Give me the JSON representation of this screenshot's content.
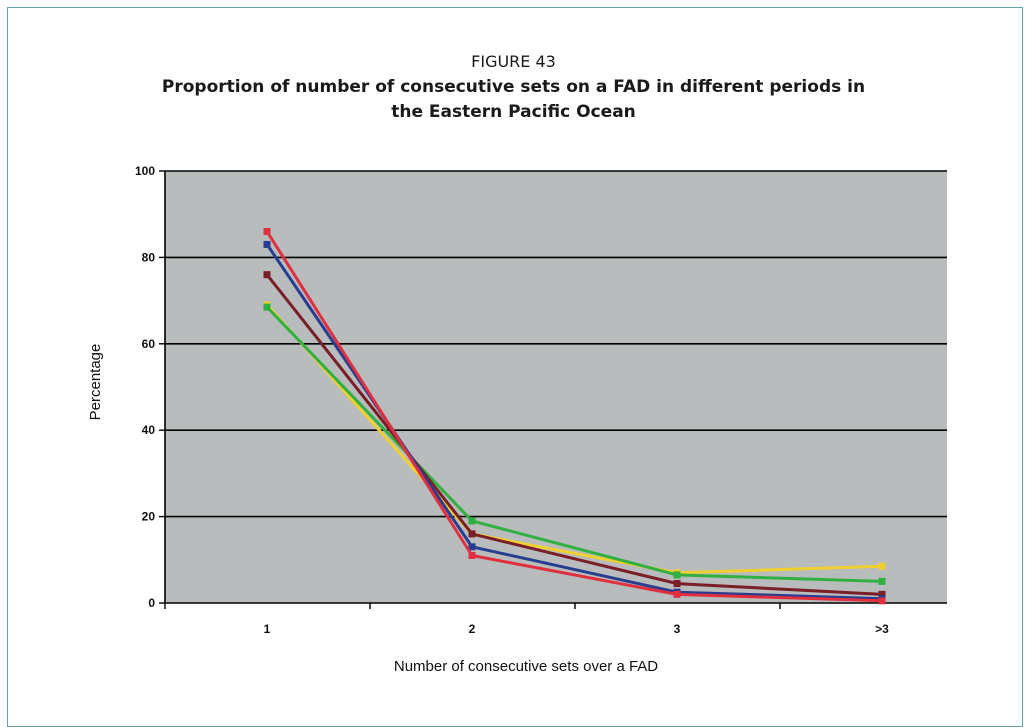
{
  "figure": {
    "label": "FIGURE 43",
    "title_line1": "Proportion of number of consecutive sets on a FAD in different periods in",
    "title_line2": "the Eastern Pacific Ocean"
  },
  "chart_data": {
    "type": "line",
    "title": "Proportion of number of consecutive sets on a FAD in different periods in the Eastern Pacific Ocean",
    "xlabel": "Number of consecutive sets over a FAD",
    "ylabel": "Percentage",
    "categories": [
      "1",
      "2",
      "3",
      ">3"
    ],
    "ylim": [
      0,
      100
    ],
    "yticks": [
      0,
      20,
      40,
      60,
      80,
      100
    ],
    "grid": true,
    "legend": "none",
    "plot_background": "#b8bcbc",
    "series": [
      {
        "color": "#f0d030",
        "values": [
          69,
          16,
          7,
          8.5
        ]
      },
      {
        "color": "#30b040",
        "values": [
          68.5,
          19,
          6.5,
          5
        ]
      },
      {
        "color": "#7a1e28",
        "values": [
          76,
          16,
          4.5,
          2
        ]
      },
      {
        "color": "#283c90",
        "values": [
          83,
          13,
          2.5,
          1
        ]
      },
      {
        "color": "#e03040",
        "values": [
          86,
          11,
          2,
          0.5
        ]
      }
    ]
  }
}
